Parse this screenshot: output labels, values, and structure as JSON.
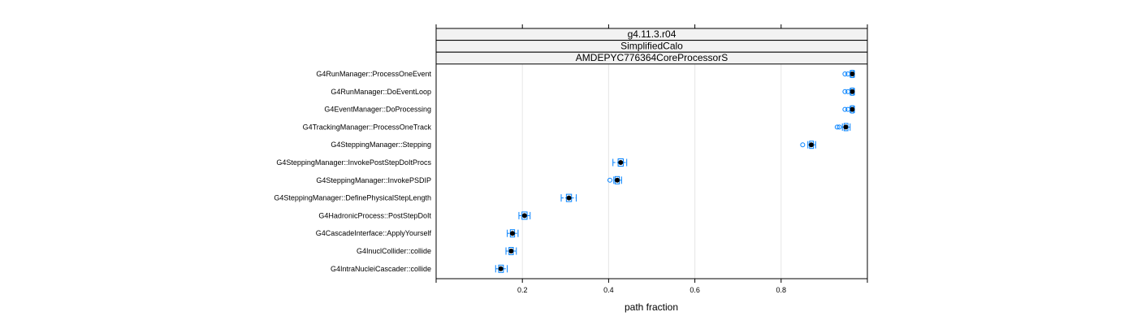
{
  "chart_data": {
    "type": "boxplot",
    "strips": [
      "g4.11.3.r04",
      "SimplifiedCalo",
      "AMDEPYC776364CoreProcessorS"
    ],
    "xlabel": "path fraction",
    "xlim": [
      0.0,
      1.0
    ],
    "xticks": [
      0.2,
      0.4,
      0.6,
      0.8
    ],
    "xtick_labels": [
      "0.2",
      "0.4",
      "0.6",
      "0.8"
    ],
    "grid": "vertical",
    "colors": {
      "box": "#0080ff",
      "median": "#000000",
      "strip": "#f2f2f2",
      "grid": "#e6e6e6"
    },
    "categories": [
      "G4RunManager::ProcessOneEvent",
      "G4RunManager::DoEventLoop",
      "G4EventManager::DoProcessing",
      "G4TrackingManager::ProcessOneTrack",
      "G4SteppingManager::Stepping",
      "G4SteppingManager::InvokePostStepDoItProcs",
      "G4SteppingManager::InvokePSDIP",
      "G4SteppingManager::DefinePhysicalStepLength",
      "G4HadronicProcess::PostStepDoIt",
      "G4CascadeInterface::ApplyYourself",
      "G4InuclCollider::collide",
      "G4IntraNucleiCascader::collide"
    ],
    "boxes": [
      {
        "min": 0.96,
        "q1": 0.962,
        "median": 0.965,
        "q3": 0.968,
        "max": 0.97,
        "outliers": [
          0.948,
          0.955
        ]
      },
      {
        "min": 0.96,
        "q1": 0.962,
        "median": 0.965,
        "q3": 0.968,
        "max": 0.97,
        "outliers": [
          0.948,
          0.955
        ]
      },
      {
        "min": 0.96,
        "q1": 0.962,
        "median": 0.965,
        "q3": 0.968,
        "max": 0.97,
        "outliers": [
          0.948,
          0.955
        ]
      },
      {
        "min": 0.942,
        "q1": 0.946,
        "median": 0.95,
        "q3": 0.955,
        "max": 0.96,
        "outliers": [
          0.93,
          0.935
        ]
      },
      {
        "min": 0.862,
        "q1": 0.866,
        "median": 0.87,
        "q3": 0.875,
        "max": 0.88,
        "outliers": [
          0.85
        ]
      },
      {
        "min": 0.41,
        "q1": 0.422,
        "median": 0.428,
        "q3": 0.434,
        "max": 0.442,
        "outliers": []
      },
      {
        "min": 0.412,
        "q1": 0.415,
        "median": 0.42,
        "q3": 0.425,
        "max": 0.43,
        "outliers": [
          0.403
        ]
      },
      {
        "min": 0.29,
        "q1": 0.302,
        "median": 0.308,
        "q3": 0.314,
        "max": 0.325,
        "outliers": []
      },
      {
        "min": 0.192,
        "q1": 0.199,
        "median": 0.205,
        "q3": 0.211,
        "max": 0.218,
        "outliers": []
      },
      {
        "min": 0.165,
        "q1": 0.172,
        "median": 0.177,
        "q3": 0.182,
        "max": 0.19,
        "outliers": []
      },
      {
        "min": 0.162,
        "q1": 0.169,
        "median": 0.174,
        "q3": 0.179,
        "max": 0.186,
        "outliers": []
      },
      {
        "min": 0.138,
        "q1": 0.145,
        "median": 0.15,
        "q3": 0.156,
        "max": 0.165,
        "outliers": []
      }
    ]
  }
}
